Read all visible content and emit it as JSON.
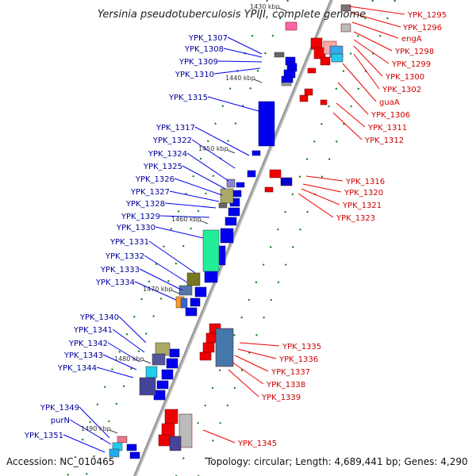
{
  "title": "Yersinia pseudotuberculosis YPIII, complete genome",
  "footer": {
    "accession": "Accession: NC_010465",
    "topology": "Topology: circular; Length: 4,689,441 bp; Genes: 4,290"
  },
  "kbp_ticks": [
    "1430 kbp",
    "1440 kbp",
    "1450 kbp",
    "1460 kbp",
    "1470 kbp",
    "1480 kbp",
    "1490 kbp"
  ],
  "left_labels": [
    "YPK_1307",
    "YPK_1308",
    "YPK_1309",
    "YPK_1310",
    "YPK_1315",
    "YPK_1317",
    "YPK_1322",
    "YPK_1324",
    "YPK_1325",
    "YPK_1326",
    "YPK_1327",
    "YPK_1328",
    "YPK_1329",
    "YPK_1330",
    "YPK_1331",
    "YPK_1332",
    "YPK_1333",
    "YPK_1334",
    "YPK_1340",
    "YPK_1341",
    "YPK_1342",
    "YPK_1343",
    "YPK_1344",
    "YPK_1349",
    "purN",
    "YPK_1351"
  ],
  "right_labels": [
    "YPK_1295",
    "YPK_1296",
    "engA",
    "YPK_1298",
    "YPK_1299",
    "YPK_1300",
    "YPK_1302",
    "guaA",
    "YPK_1306",
    "YPK_1311",
    "YPK_1312",
    "YPK_1316",
    "YPK_1320",
    "YPK_1321",
    "YPK_1323",
    "YPK_1335",
    "YPK_1336",
    "YPK_1337",
    "YPK_1338",
    "YPK_1339",
    "YPK_1345"
  ],
  "colors": {
    "forward_strand": "#0000ee",
    "reverse_strand": "#ee0000",
    "left_label_text": "#000099",
    "right_label_text": "#cc0000",
    "backbone": "#999999",
    "tick_green": "#007700"
  }
}
